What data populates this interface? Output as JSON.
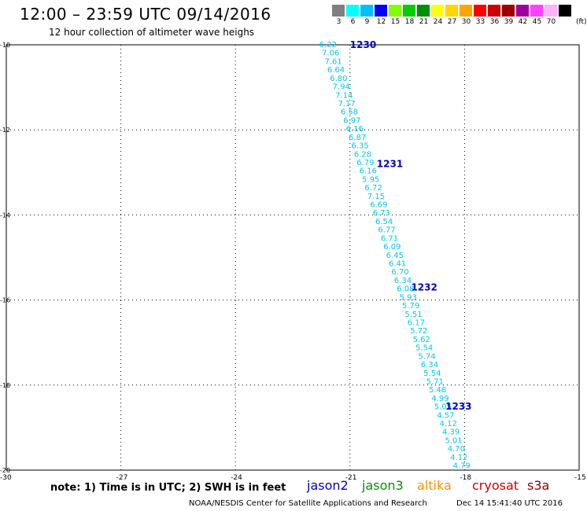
{
  "header": {
    "title": "12:00 – 23:59 UTC 09/14/2016",
    "subtitle": "12 hour collection of altimeter wave heighs"
  },
  "color_scale": {
    "unit": "(ft)",
    "bins": [
      {
        "label": "3",
        "color": "#7f7f7f"
      },
      {
        "label": "6",
        "color": "#00ffff"
      },
      {
        "label": "9",
        "color": "#00bfff"
      },
      {
        "label": "12",
        "color": "#0000ff"
      },
      {
        "label": "15",
        "color": "#7fff00"
      },
      {
        "label": "18",
        "color": "#00d000"
      },
      {
        "label": "21",
        "color": "#009000"
      },
      {
        "label": "24",
        "color": "#ffff00"
      },
      {
        "label": "27",
        "color": "#ffd700"
      },
      {
        "label": "30",
        "color": "#ffa500"
      },
      {
        "label": "33",
        "color": "#ff0000"
      },
      {
        "label": "36",
        "color": "#d00000"
      },
      {
        "label": "39",
        "color": "#a00000"
      },
      {
        "label": "42",
        "color": "#a000a0"
      },
      {
        "label": "45",
        "color": "#ff40ff"
      },
      {
        "label": "70",
        "color": "#ffb0ff"
      },
      {
        "label": "",
        "color": "#000000"
      }
    ]
  },
  "map": {
    "lon_ticks": [
      -30,
      -27,
      -24,
      -21,
      -18,
      -15
    ],
    "lat_ticks": [
      -10,
      -12,
      -14,
      -16,
      -18,
      -20
    ],
    "lon_range": [
      -30,
      -15
    ],
    "lat_range": [
      -20,
      -10
    ],
    "grid": "dotted",
    "point_color": "#00c8e6",
    "time_label_color": "#0000c0",
    "track": {
      "start": {
        "lon": -21.6,
        "lat": -10.0
      },
      "end": {
        "lon": -18.1,
        "lat": -19.9
      },
      "swh_ft": [
        "6.22",
        "7.06",
        "7.61",
        "6.64",
        "6.80",
        "7.94",
        "7.14",
        "7.17",
        "6.58",
        "6.97",
        "6.16",
        "6.87",
        "6.35",
        "6.28",
        "6.79",
        "6.16",
        "5.95",
        "6.72",
        "7.15",
        "6.69",
        "6.73",
        "6.54",
        "6.77",
        "6.71",
        "6.09",
        "6.45",
        "6.41",
        "6.70",
        "6.34",
        "6.08",
        "5.93",
        "5.79",
        "5.51",
        "6.17",
        "5.72",
        "5.62",
        "5.54",
        "5.74",
        "6.34",
        "5.54",
        "5.71",
        "5.48",
        "4.99",
        "5.05",
        "4.57",
        "4.12",
        "4.39",
        "5.01",
        "4.70",
        "4.12",
        "4.79"
      ],
      "time_labels": [
        {
          "text": "1230",
          "lon": -21.0,
          "lat": -10.0
        },
        {
          "text": "1231",
          "lon": -20.3,
          "lat": -12.8
        },
        {
          "text": "1232",
          "lon": -19.4,
          "lat": -15.7
        },
        {
          "text": "1233",
          "lon": -18.5,
          "lat": -18.5
        }
      ]
    }
  },
  "note": "note: 1) Time is in UTC; 2) SWH is in feet",
  "satellites": [
    {
      "name": "jason2",
      "color": "#0000c0"
    },
    {
      "name": "jason3",
      "color": "#009000"
    },
    {
      "name": "altika",
      "color": "#ff9000"
    },
    {
      "name": "cryosat",
      "color": "#d00000"
    },
    {
      "name": "s3a",
      "color": "#900000"
    }
  ],
  "footer": {
    "credit": "NOAA/NESDIS Center for Satellite Applications and Research",
    "timestamp": "Dec 14 15:41:40 UTC 2016"
  }
}
